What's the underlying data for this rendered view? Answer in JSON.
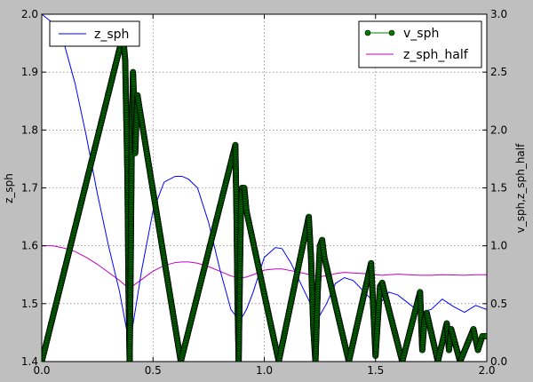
{
  "chart_data": {
    "type": "line",
    "background": "#bfbfbf",
    "plot_background": "#ffffff",
    "grid": true,
    "x": {
      "range": [
        0.0,
        2.0
      ],
      "ticks": [
        "0.0",
        "0.5",
        "1.0",
        "1.5",
        "2.0"
      ]
    },
    "y_left": {
      "label": "z_sph",
      "range": [
        1.4,
        2.0
      ],
      "ticks": [
        "1.4",
        "1.5",
        "1.6",
        "1.7",
        "1.8",
        "1.9",
        "2.0"
      ]
    },
    "y_right": {
      "label": "v_sph,z_sph_half",
      "range": [
        0.0,
        3.0
      ],
      "ticks": [
        "0.0",
        "0.5",
        "1.0",
        "1.5",
        "2.0",
        "2.5",
        "3.0"
      ]
    },
    "legend_left": {
      "placement": "top-left",
      "entries": [
        "z_sph"
      ]
    },
    "legend_right": {
      "placement": "top-right",
      "entries": [
        "v_sph",
        "z_sph_half"
      ]
    },
    "series": [
      {
        "name": "z_sph",
        "axis": "left",
        "color": "#0000ff",
        "style": "line",
        "x": [
          0.0,
          0.05,
          0.1,
          0.15,
          0.2,
          0.25,
          0.3,
          0.35,
          0.38,
          0.4,
          0.45,
          0.5,
          0.55,
          0.6,
          0.63,
          0.66,
          0.7,
          0.75,
          0.8,
          0.85,
          0.89,
          0.92,
          0.95,
          1.0,
          1.05,
          1.08,
          1.12,
          1.17,
          1.22,
          1.25,
          1.28,
          1.32,
          1.36,
          1.4,
          1.45,
          1.5,
          1.53,
          1.56,
          1.6,
          1.65,
          1.7,
          1.75,
          1.8,
          1.85,
          1.9,
          1.95,
          2.0
        ],
        "y": [
          2.0,
          1.985,
          1.95,
          1.88,
          1.79,
          1.69,
          1.6,
          1.52,
          1.458,
          1.44,
          1.56,
          1.66,
          1.71,
          1.72,
          1.72,
          1.715,
          1.7,
          1.64,
          1.56,
          1.49,
          1.47,
          1.49,
          1.52,
          1.58,
          1.597,
          1.595,
          1.57,
          1.53,
          1.49,
          1.48,
          1.5,
          1.535,
          1.545,
          1.54,
          1.52,
          1.5,
          1.505,
          1.52,
          1.515,
          1.5,
          1.485,
          1.49,
          1.508,
          1.495,
          1.485,
          1.497,
          1.49
        ]
      },
      {
        "name": "v_sph",
        "axis": "right",
        "color": "#008000",
        "style": "line-with-circle-markers",
        "x": [
          0.0,
          0.365,
          0.375,
          0.385,
          0.39,
          0.395,
          0.4,
          0.405,
          0.41,
          0.415,
          0.42,
          0.43,
          0.625,
          0.87,
          0.875,
          0.88,
          0.885,
          0.89,
          0.895,
          0.9,
          0.91,
          0.92,
          1.065,
          1.2,
          1.21,
          1.22,
          1.23,
          1.24,
          1.25,
          1.26,
          1.27,
          1.38,
          1.48,
          1.49,
          1.5,
          1.51,
          1.52,
          1.53,
          1.54,
          1.62,
          1.7,
          1.71,
          1.72,
          1.73,
          1.78,
          1.82,
          1.83,
          1.84,
          1.88,
          1.94,
          1.96,
          1.98,
          2.0
        ],
        "y": [
          0.0,
          2.82,
          2.6,
          1.6,
          0.6,
          0.0,
          0.9,
          2.0,
          2.5,
          2.25,
          1.8,
          2.3,
          0.0,
          1.87,
          1.3,
          0.5,
          0.0,
          0.7,
          1.3,
          1.5,
          1.5,
          1.3,
          0.0,
          1.25,
          0.9,
          0.3,
          0.0,
          0.6,
          1.0,
          1.05,
          0.9,
          0.0,
          0.85,
          0.45,
          0.05,
          0.35,
          0.65,
          0.68,
          0.6,
          0.0,
          0.6,
          0.1,
          0.35,
          0.42,
          0.0,
          0.33,
          0.1,
          0.28,
          0.0,
          0.28,
          0.1,
          0.22,
          0.22
        ]
      },
      {
        "name": "z_sph_half",
        "axis": "right",
        "color": "#bf00bf",
        "style": "line",
        "x": [
          0.0,
          0.05,
          0.1,
          0.15,
          0.2,
          0.25,
          0.3,
          0.35,
          0.38,
          0.4,
          0.45,
          0.5,
          0.55,
          0.6,
          0.63,
          0.66,
          0.7,
          0.75,
          0.8,
          0.85,
          0.89,
          0.92,
          0.95,
          1.0,
          1.05,
          1.08,
          1.12,
          1.17,
          1.22,
          1.25,
          1.28,
          1.32,
          1.36,
          1.4,
          1.45,
          1.5,
          1.53,
          1.56,
          1.6,
          1.65,
          1.7,
          1.75,
          1.8,
          1.85,
          1.9,
          1.95,
          2.0
        ],
        "y": [
          1.0,
          1.0,
          0.98,
          0.95,
          0.9,
          0.84,
          0.77,
          0.7,
          0.65,
          0.64,
          0.71,
          0.78,
          0.83,
          0.855,
          0.86,
          0.86,
          0.85,
          0.82,
          0.78,
          0.74,
          0.72,
          0.73,
          0.75,
          0.79,
          0.8,
          0.8,
          0.785,
          0.765,
          0.745,
          0.735,
          0.74,
          0.76,
          0.77,
          0.765,
          0.76,
          0.75,
          0.745,
          0.75,
          0.755,
          0.75,
          0.745,
          0.745,
          0.75,
          0.748,
          0.745,
          0.75,
          0.75
        ]
      }
    ]
  }
}
